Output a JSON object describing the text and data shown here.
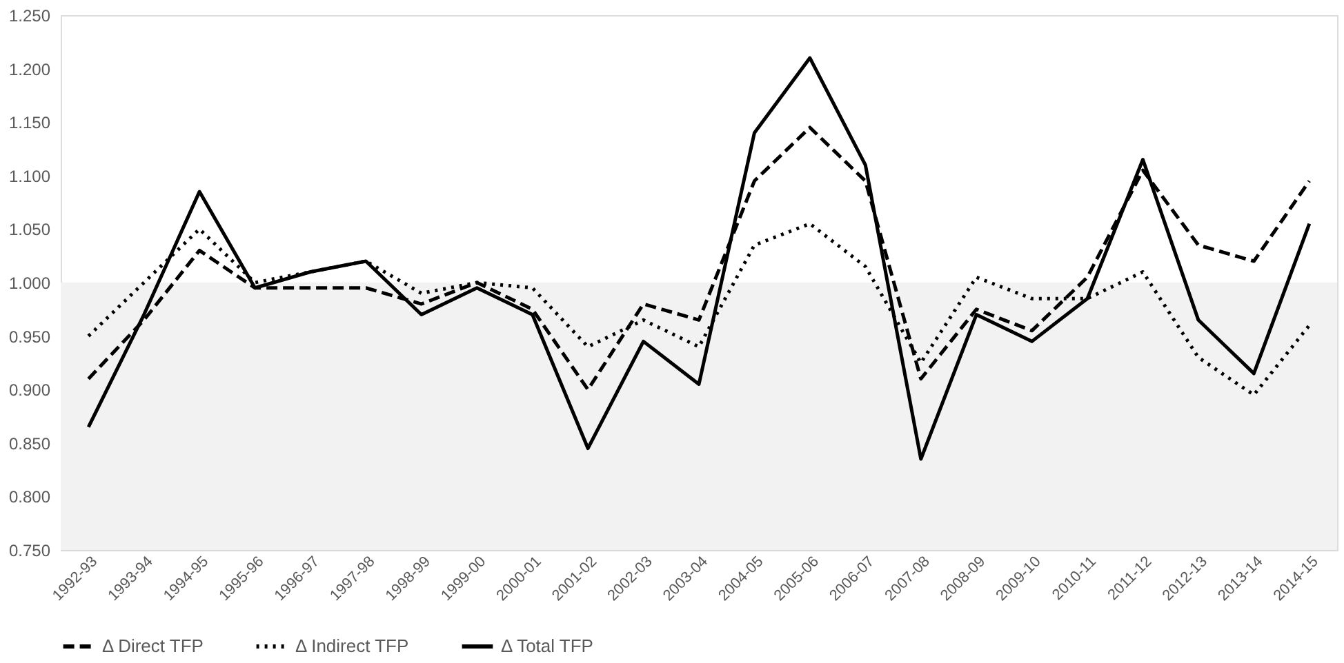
{
  "chart_data": {
    "type": "line",
    "categories": [
      "1992-93",
      "1993-94",
      "1994-95",
      "1995-96",
      "1996-97",
      "1997-98",
      "1998-99",
      "1999-00",
      "2000-01",
      "2001-02",
      "2002-03",
      "2003-04",
      "2004-05",
      "2005-06",
      "2006-07",
      "2007-08",
      "2008-09",
      "2009-10",
      "2010-11",
      "2011-12",
      "2012-13",
      "2013-14",
      "2014-15"
    ],
    "series": [
      {
        "name": "Δ Direct TFP",
        "color": "#000000",
        "line_style": "dashed",
        "values": [
          0.91,
          0.965,
          1.03,
          0.995,
          0.995,
          0.995,
          0.98,
          1.0,
          0.975,
          0.9,
          0.98,
          0.965,
          1.095,
          1.145,
          1.095,
          0.91,
          0.975,
          0.955,
          1.005,
          1.105,
          1.035,
          1.02,
          1.095
        ]
      },
      {
        "name": "Δ Indirect TFP",
        "color": "#000000",
        "line_style": "dotted",
        "values": [
          0.95,
          1.0,
          1.05,
          1.0,
          1.01,
          1.02,
          0.99,
          1.0,
          0.995,
          0.94,
          0.965,
          0.94,
          1.035,
          1.055,
          1.015,
          0.925,
          1.005,
          0.985,
          0.985,
          1.01,
          0.93,
          0.895,
          0.96
        ]
      },
      {
        "name": "Δ Total TFP",
        "color": "#000000",
        "line_style": "solid",
        "values": [
          0.865,
          0.97,
          1.085,
          0.995,
          1.01,
          1.02,
          0.97,
          0.995,
          0.97,
          0.845,
          0.945,
          0.905,
          1.14,
          1.21,
          1.11,
          0.835,
          0.97,
          0.945,
          0.985,
          1.115,
          0.965,
          0.915,
          1.055
        ]
      }
    ],
    "ylim": [
      0.75,
      1.25
    ],
    "yticks": [
      {
        "value": 0.75,
        "label": "0.750"
      },
      {
        "value": 0.8,
        "label": "0.800"
      },
      {
        "value": 0.85,
        "label": "0.850"
      },
      {
        "value": 0.9,
        "label": "0.900"
      },
      {
        "value": 0.95,
        "label": "0.950"
      },
      {
        "value": 1.0,
        "label": "1.000"
      },
      {
        "value": 1.05,
        "label": "1.050"
      },
      {
        "value": 1.1,
        "label": "1.100"
      },
      {
        "value": 1.15,
        "label": "1.150"
      },
      {
        "value": 1.2,
        "label": "1.200"
      },
      {
        "value": 1.25,
        "label": "1.250"
      }
    ],
    "bands": [
      {
        "axis": "y",
        "from": 0.75,
        "to": 1.0,
        "color": "#f2f2f2"
      }
    ],
    "grid": false,
    "legend": "bottom",
    "marker": "none"
  }
}
